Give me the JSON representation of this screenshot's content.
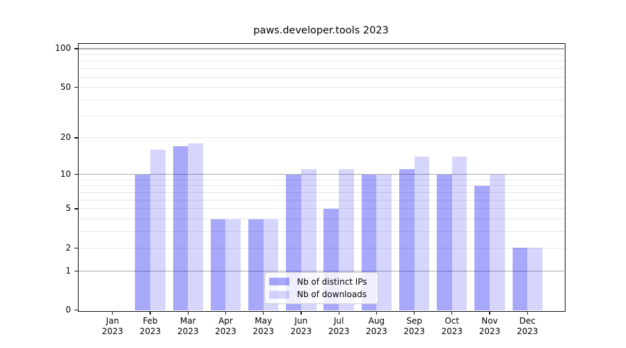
{
  "title": "paws.developer.tools 2023",
  "legend": {
    "items": [
      {
        "label": "Nb of distinct IPs",
        "series_key": "distinct_ips"
      },
      {
        "label": "Nb of downloads",
        "series_key": "downloads"
      }
    ]
  },
  "colors": {
    "bar_dark": "rgba(0,0,240,0.34)",
    "bar_light": "rgba(0,0,240,0.16)",
    "grid_minor": "#e9e9e9",
    "grid_major": "#a9a9a9",
    "spine": "#111111",
    "text": "#000000",
    "legend_bg": "rgba(255,255,255,0.8)",
    "legend_border": "#cccccc"
  },
  "chart_data": {
    "type": "bar",
    "title": "paws.developer.tools 2023",
    "categories": [
      "Jan 2023",
      "Feb 2023",
      "Mar 2023",
      "Apr 2023",
      "May 2023",
      "Jun 2023",
      "Jul 2023",
      "Aug 2023",
      "Sep 2023",
      "Oct 2023",
      "Nov 2023",
      "Dec 2023"
    ],
    "series": [
      {
        "name": "Nb of distinct IPs",
        "values": [
          0,
          10,
          17,
          4,
          4,
          10,
          5,
          10,
          11,
          10,
          8,
          2
        ]
      },
      {
        "name": "Nb of downloads",
        "values": [
          0,
          16,
          18,
          4,
          4,
          11,
          11,
          10,
          14,
          14,
          10,
          2
        ]
      }
    ],
    "xlabel": "",
    "ylabel": "",
    "yscale": "log1p",
    "ylim": [
      0,
      112
    ],
    "y_ticks": [
      {
        "label": "100",
        "value": 100
      },
      {
        "label": "50",
        "value": 50
      },
      {
        "label": "20",
        "value": 20
      },
      {
        "label": "10",
        "value": 10
      },
      {
        "label": "5",
        "value": 5
      },
      {
        "label": "2",
        "value": 2
      },
      {
        "label": "1",
        "value": 1
      },
      {
        "label": "0",
        "value": 0
      }
    ],
    "y_major_grid": [
      1,
      10,
      100
    ],
    "y_minor_grid": [
      2,
      3,
      4,
      5,
      6,
      7,
      8,
      9,
      20,
      30,
      40,
      50,
      60,
      70,
      80,
      90
    ],
    "grid": true,
    "legend_position": "lower center"
  }
}
